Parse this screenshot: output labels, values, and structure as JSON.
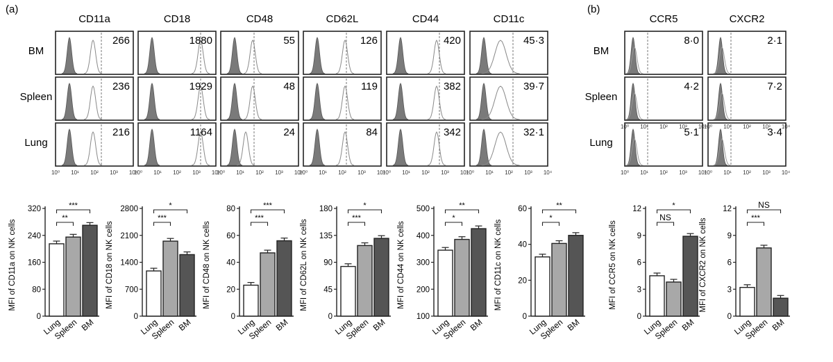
{
  "panel_a_label": "(a)",
  "panel_b_label": "(b)",
  "row_labels": [
    "BM",
    "Spleen",
    "Lung"
  ],
  "x_tick_labels": [
    "10⁰",
    "10¹",
    "10²",
    "10³",
    "10⁴"
  ],
  "histograms": [
    {
      "marker": "CD11a",
      "mfi": [
        "266",
        "236",
        "216"
      ]
    },
    {
      "marker": "CD18",
      "mfi": [
        "1880",
        "1929",
        "1164"
      ]
    },
    {
      "marker": "CD48",
      "mfi": [
        "55",
        "48",
        "24"
      ]
    },
    {
      "marker": "CD62L",
      "mfi": [
        "126",
        "119",
        "84"
      ]
    },
    {
      "marker": "CD44",
      "mfi": [
        "420",
        "382",
        "342"
      ]
    },
    {
      "marker": "CD11c",
      "mfi": [
        "45·3",
        "39·7",
        "32·1"
      ]
    },
    {
      "marker": "CCR5",
      "mfi": [
        "8·0",
        "4·2",
        "5·1"
      ]
    },
    {
      "marker": "CXCR2",
      "mfi": [
        "2·1",
        "7·2",
        "3·4"
      ]
    }
  ],
  "chart_data": [
    {
      "type": "bar",
      "categories": [
        "Lung",
        "Spleen",
        "BM"
      ],
      "values": [
        215,
        235,
        270
      ],
      "ylabel": "MFI of CD11a on NK cells",
      "ylim": [
        0,
        320
      ],
      "yticks": [
        0,
        80,
        160,
        240,
        320
      ],
      "colors": [
        "#ffffff",
        "#a8a8a8",
        "#555555"
      ],
      "significance": [
        {
          "pair": [
            "Lung",
            "Spleen"
          ],
          "label": "**"
        },
        {
          "pair": [
            "Lung",
            "BM"
          ],
          "label": "***"
        }
      ]
    },
    {
      "type": "bar",
      "categories": [
        "Lung",
        "Spleen",
        "BM"
      ],
      "values": [
        1175,
        1950,
        1600
      ],
      "ylabel": "MFI of CD18 on NK cells",
      "ylim": [
        0,
        2800
      ],
      "yticks": [
        0,
        700,
        1400,
        2100,
        2800
      ],
      "colors": [
        "#ffffff",
        "#a8a8a8",
        "#555555"
      ],
      "significance": [
        {
          "pair": [
            "Lung",
            "Spleen"
          ],
          "label": "***"
        },
        {
          "pair": [
            "Lung",
            "BM"
          ],
          "label": "*"
        }
      ]
    },
    {
      "type": "bar",
      "categories": [
        "Lung",
        "Spleen",
        "BM"
      ],
      "values": [
        23,
        47,
        56
      ],
      "ylabel": "MFI of CD48 on NK cells",
      "ylim": [
        0,
        80
      ],
      "yticks": [
        0,
        20,
        40,
        60,
        80
      ],
      "colors": [
        "#ffffff",
        "#a8a8a8",
        "#555555"
      ],
      "significance": [
        {
          "pair": [
            "Lung",
            "Spleen"
          ],
          "label": "***"
        },
        {
          "pair": [
            "Lung",
            "BM"
          ],
          "label": "***"
        }
      ]
    },
    {
      "type": "bar",
      "categories": [
        "Lung",
        "Spleen",
        "BM"
      ],
      "values": [
        83,
        118,
        130
      ],
      "ylabel": "MFI of CD62L on NK cells",
      "ylim": [
        0,
        180
      ],
      "yticks": [
        0,
        45,
        90,
        135,
        180
      ],
      "colors": [
        "#ffffff",
        "#a8a8a8",
        "#555555"
      ],
      "significance": [
        {
          "pair": [
            "Lung",
            "Spleen"
          ],
          "label": "***"
        },
        {
          "pair": [
            "Lung",
            "BM"
          ],
          "label": "*"
        }
      ]
    },
    {
      "type": "bar",
      "categories": [
        "Lung",
        "Spleen",
        "BM"
      ],
      "values": [
        345,
        385,
        425
      ],
      "ylabel": "MFI of CD44 on NK cells",
      "ylim": [
        100,
        500
      ],
      "yticks": [
        100,
        200,
        300,
        400,
        500
      ],
      "colors": [
        "#ffffff",
        "#a8a8a8",
        "#555555"
      ],
      "significance": [
        {
          "pair": [
            "Lung",
            "Spleen"
          ],
          "label": "*"
        },
        {
          "pair": [
            "Lung",
            "BM"
          ],
          "label": "**"
        }
      ]
    },
    {
      "type": "bar",
      "categories": [
        "Lung",
        "Spleen",
        "BM"
      ],
      "values": [
        33,
        40.5,
        45
      ],
      "ylabel": "MFI of CD11c on NK cells",
      "ylim": [
        0,
        60
      ],
      "yticks": [
        0,
        20,
        40,
        60
      ],
      "colors": [
        "#ffffff",
        "#a8a8a8",
        "#555555"
      ],
      "significance": [
        {
          "pair": [
            "Lung",
            "Spleen"
          ],
          "label": "*"
        },
        {
          "pair": [
            "Lung",
            "BM"
          ],
          "label": "**"
        }
      ]
    },
    {
      "type": "bar",
      "categories": [
        "Lung",
        "Spleen",
        "BM"
      ],
      "values": [
        4.5,
        3.8,
        8.9
      ],
      "ylabel": "MFI of CCR5 on NK cells",
      "ylim": [
        0,
        12
      ],
      "yticks": [
        0,
        3,
        6,
        9,
        12
      ],
      "colors": [
        "#ffffff",
        "#a8a8a8",
        "#555555"
      ],
      "significance": [
        {
          "pair": [
            "Lung",
            "Spleen"
          ],
          "label": "NS"
        },
        {
          "pair": [
            "Lung",
            "BM"
          ],
          "label": "*"
        }
      ]
    },
    {
      "type": "bar",
      "categories": [
        "Lung",
        "Spleen",
        "BM"
      ],
      "values": [
        3.2,
        7.6,
        2.0
      ],
      "ylabel": "MFI of CXCR2 on NK cells",
      "ylim": [
        0,
        12
      ],
      "yticks": [
        0,
        3,
        6,
        9,
        12
      ],
      "colors": [
        "#ffffff",
        "#a8a8a8",
        "#555555"
      ],
      "significance": [
        {
          "pair": [
            "Lung",
            "Spleen"
          ],
          "label": "***"
        },
        {
          "pair": [
            "Lung",
            "BM"
          ],
          "label": "NS"
        }
      ]
    }
  ]
}
